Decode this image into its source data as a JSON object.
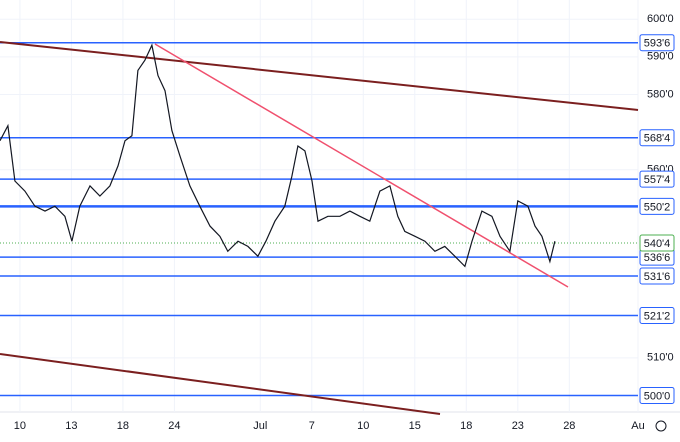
{
  "chart_data": {
    "type": "line",
    "series": [
      {
        "color": "#131722",
        "x": [
          -1.16,
          -0.7,
          -0.29,
          0.29,
          0.87,
          1.46,
          2.04,
          2.62,
          3.03,
          3.49,
          4.08,
          4.66,
          5.24,
          5.71,
          6.12,
          6.52,
          6.87,
          7.28,
          7.69,
          8.04,
          8.45,
          8.85,
          9.32,
          9.9,
          10.48,
          11.07,
          11.65,
          12.11,
          12.7,
          13.28,
          13.86,
          14.33,
          14.85,
          15.43,
          15.84,
          16.19,
          16.6,
          17.01,
          17.36,
          17.94,
          18.64,
          19.22,
          19.8,
          20.38,
          20.97,
          21.55,
          22.01,
          22.42,
          23.01,
          23.59,
          24.17,
          24.75,
          25.33,
          25.92,
          26.33,
          26.91,
          27.49,
          27.96,
          28.54,
          29.0,
          29.59,
          30.0,
          30.4,
          30.87,
          31.16
        ],
        "values": [
          567.7,
          571.7,
          557.0,
          554.3,
          550.3,
          549.0,
          550.3,
          547.6,
          541.0,
          550.3,
          555.7,
          553.0,
          555.7,
          561.0,
          567.7,
          569.0,
          586.4,
          589.1,
          593.1,
          585.0,
          581.0,
          570.4,
          563.7,
          555.7,
          550.3,
          545.0,
          542.3,
          538.3,
          541.0,
          539.6,
          537.0,
          541.0,
          546.3,
          550.3,
          558.3,
          566.3,
          565.0,
          557.0,
          546.3,
          547.6,
          547.6,
          549.0,
          547.6,
          546.3,
          554.3,
          555.7,
          547.6,
          543.6,
          542.3,
          541.0,
          538.3,
          539.6,
          537.0,
          534.3,
          541.0,
          549.0,
          547.6,
          542.3,
          538.3,
          551.7,
          550.3,
          545.0,
          542.3,
          535.6,
          541.0
        ]
      }
    ],
    "xlim": [
      -1.16,
      36
    ],
    "xticks": [
      {
        "value": 0,
        "label": "10"
      },
      {
        "value": 3,
        "label": "13"
      },
      {
        "value": 6,
        "label": "18"
      },
      {
        "value": 9,
        "label": "24"
      },
      {
        "value": 14,
        "label": "Jul"
      },
      {
        "value": 17,
        "label": "7"
      },
      {
        "value": 20,
        "label": "10"
      },
      {
        "value": 23,
        "label": "15"
      },
      {
        "value": 26,
        "label": "18"
      },
      {
        "value": 29,
        "label": "23"
      },
      {
        "value": 32,
        "label": "28"
      },
      {
        "value": 36,
        "label": "Au"
      }
    ],
    "ylim": [
      495.6,
      605.1
    ],
    "yticks": [
      {
        "value": 600,
        "label": "600'0"
      },
      {
        "value": 590,
        "label": "590'0"
      },
      {
        "value": 580,
        "label": "580'0"
      },
      {
        "value": 560,
        "label": "560'0"
      },
      {
        "value": 510,
        "label": "510'0"
      }
    ],
    "levels": [
      {
        "value": 593.75,
        "label": "593'6"
      },
      {
        "value": 568.5,
        "label": "568'4"
      },
      {
        "value": 557.5,
        "label": "557'4"
      },
      {
        "value": 550.25,
        "label": "550'2"
      },
      {
        "value": 536.75,
        "label": "536'6"
      },
      {
        "value": 531.75,
        "label": "531'6"
      },
      {
        "value": 521.25,
        "label": "521'2"
      },
      {
        "value": 500,
        "label": "500'0"
      }
    ],
    "level_color": "#2962ff",
    "last_price": {
      "value": 540.5,
      "label": "540'4"
    },
    "last_color": "#4caf50"
  }
}
